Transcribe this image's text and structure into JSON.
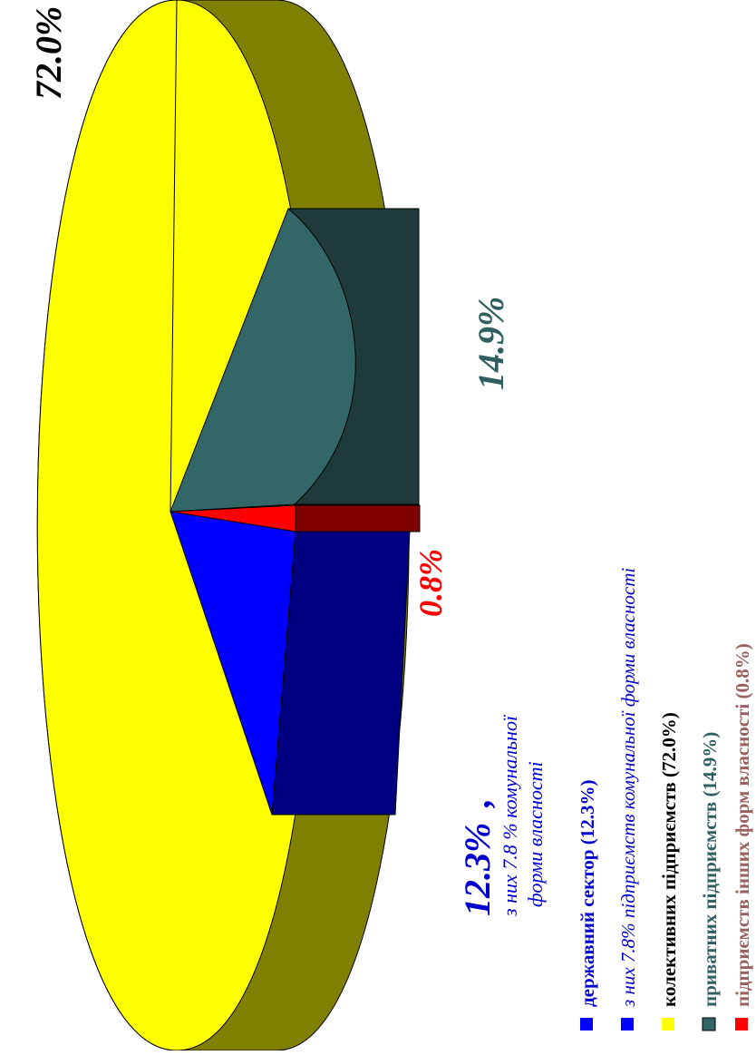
{
  "chart_data": {
    "type": "pie",
    "style": "3d-exploded, rotated 90° counter-clockwise",
    "slices": [
      {
        "name": "колективних підприємств (72.0%)",
        "value": 72.0,
        "label": "72.0%",
        "color": "#ffff00",
        "side_color": "#808000",
        "label_color": "#000000"
      },
      {
        "name": "приватних підприємств (14.9%)",
        "value": 14.9,
        "label": "14.9%",
        "color": "#336666",
        "side_color": "#1f3a3a",
        "label_color": "#2f5f5f"
      },
      {
        "name": "підприємств інших форм власності (0.8%)",
        "value": 0.8,
        "label": "0.8%",
        "color": "#ff0000",
        "side_color": "#800000",
        "label_color": "#ff0000"
      },
      {
        "name": "державний сектор (12.3%)",
        "value": 12.3,
        "label": "12.3%",
        "color": "#0000ff",
        "side_color": "#000080",
        "label_color": "#0000cc"
      }
    ],
    "annotation": {
      "main": "12.3%",
      "comma": ",",
      "line1": "з них  7.8 %  комунальної",
      "line2": "форми власності"
    },
    "legend": {
      "position": "bottom",
      "items": [
        {
          "text": "державний сектор  (12.3%)",
          "color": "#0000ff",
          "text_color": "#0000cc",
          "italic": false
        },
        {
          "text": "з них  7.8% підприємств комунальної форми власності",
          "color": "#0000ff",
          "text_color": "#0000cc",
          "italic": true
        },
        {
          "text": "колективних  підприємств (72.0%)",
          "color": "#ffff00",
          "text_color": "#000000",
          "italic": false
        },
        {
          "text": "приватних  підприємств (14.9%)",
          "color": "#336666",
          "text_color": "#2f5f5f",
          "italic": false
        },
        {
          "text": "підприємств інших  форм власності (0.8%)",
          "color": "#ff0000",
          "text_color": "#9a6060",
          "italic": false
        }
      ]
    }
  }
}
